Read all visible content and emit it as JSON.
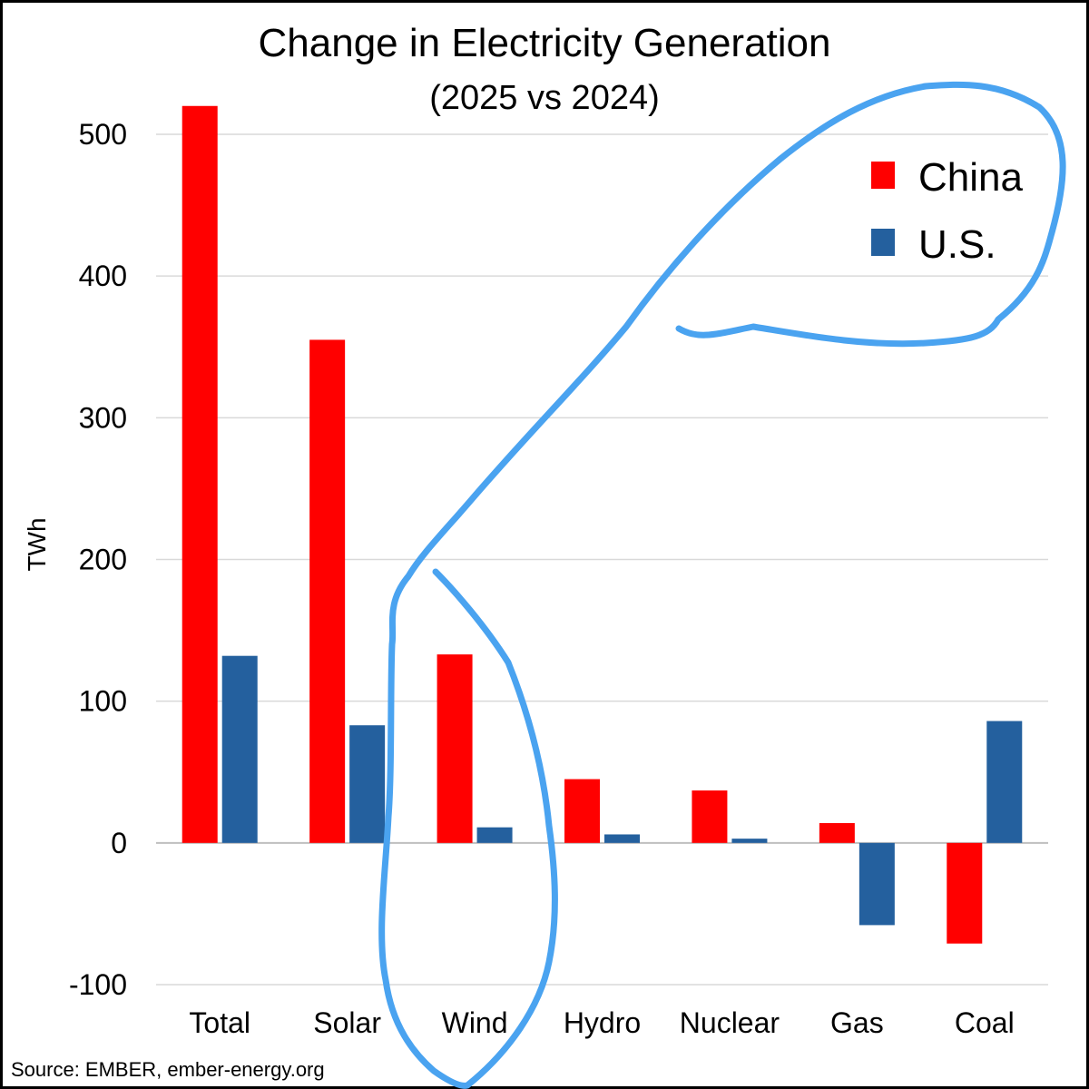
{
  "chart_data": {
    "type": "bar",
    "title": "Change in Electricity Generation",
    "subtitle": "(2025 vs 2024)",
    "xlabel": "",
    "ylabel": "TWh",
    "ylim": [
      -100,
      500
    ],
    "yticks": [
      500,
      400,
      300,
      200,
      100,
      0,
      -100
    ],
    "yticks_labels": [
      "500",
      "400",
      "300",
      "200",
      "100",
      "0",
      "-100"
    ],
    "grid": true,
    "legend_position": "top-right",
    "categories": [
      "Total",
      "Solar",
      "Wind",
      "Hydro",
      "Nuclear",
      "Gas",
      "Coal"
    ],
    "series": [
      {
        "name": "China",
        "color": "#ff0000",
        "values": [
          520,
          355,
          133,
          45,
          37,
          14,
          -71
        ]
      },
      {
        "name": "U.S.",
        "color": "#24609e",
        "values": [
          132,
          83,
          11,
          6,
          3,
          -58,
          86
        ]
      }
    ],
    "annotation_color": "#4aa3f0",
    "source": "Source: EMBER, ember-energy.org"
  }
}
